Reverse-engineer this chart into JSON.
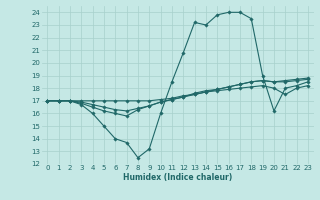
{
  "title": "",
  "xlabel": "Humidex (Indice chaleur)",
  "xlim": [
    -0.5,
    23.5
  ],
  "ylim": [
    12,
    24.5
  ],
  "xticks": [
    0,
    1,
    2,
    3,
    4,
    5,
    6,
    7,
    8,
    9,
    10,
    11,
    12,
    13,
    14,
    15,
    16,
    17,
    18,
    19,
    20,
    21,
    22,
    23
  ],
  "yticks": [
    12,
    13,
    14,
    15,
    16,
    17,
    18,
    19,
    20,
    21,
    22,
    23,
    24
  ],
  "bg_color": "#c5e8e5",
  "line_color": "#206868",
  "grid_color": "#a8d0cc",
  "series": [
    [
      17.0,
      17.0,
      17.0,
      16.7,
      16.0,
      15.0,
      14.0,
      13.7,
      12.5,
      13.2,
      16.0,
      18.5,
      20.8,
      23.2,
      23.0,
      23.8,
      24.0,
      24.0,
      23.5,
      19.0,
      16.2,
      18.0,
      18.2,
      18.5
    ],
    [
      17.0,
      17.0,
      17.0,
      16.8,
      16.5,
      16.2,
      16.0,
      15.8,
      16.3,
      16.6,
      16.9,
      17.1,
      17.3,
      17.5,
      17.7,
      17.9,
      18.1,
      18.3,
      18.5,
      18.6,
      18.5,
      18.6,
      18.7,
      18.8
    ],
    [
      17.0,
      17.0,
      17.0,
      16.9,
      16.7,
      16.5,
      16.3,
      16.2,
      16.4,
      16.6,
      16.9,
      17.1,
      17.3,
      17.6,
      17.8,
      17.9,
      18.1,
      18.3,
      18.5,
      18.6,
      18.5,
      18.5,
      18.6,
      18.7
    ],
    [
      17.0,
      17.0,
      17.0,
      17.0,
      17.0,
      17.0,
      17.0,
      17.0,
      17.0,
      17.0,
      17.1,
      17.2,
      17.4,
      17.5,
      17.7,
      17.8,
      17.9,
      18.0,
      18.1,
      18.2,
      18.0,
      17.5,
      18.0,
      18.2
    ]
  ],
  "marker": "D",
  "markersize": 1.8,
  "linewidth": 0.8,
  "tick_fontsize": 5.0,
  "xlabel_fontsize": 5.5
}
